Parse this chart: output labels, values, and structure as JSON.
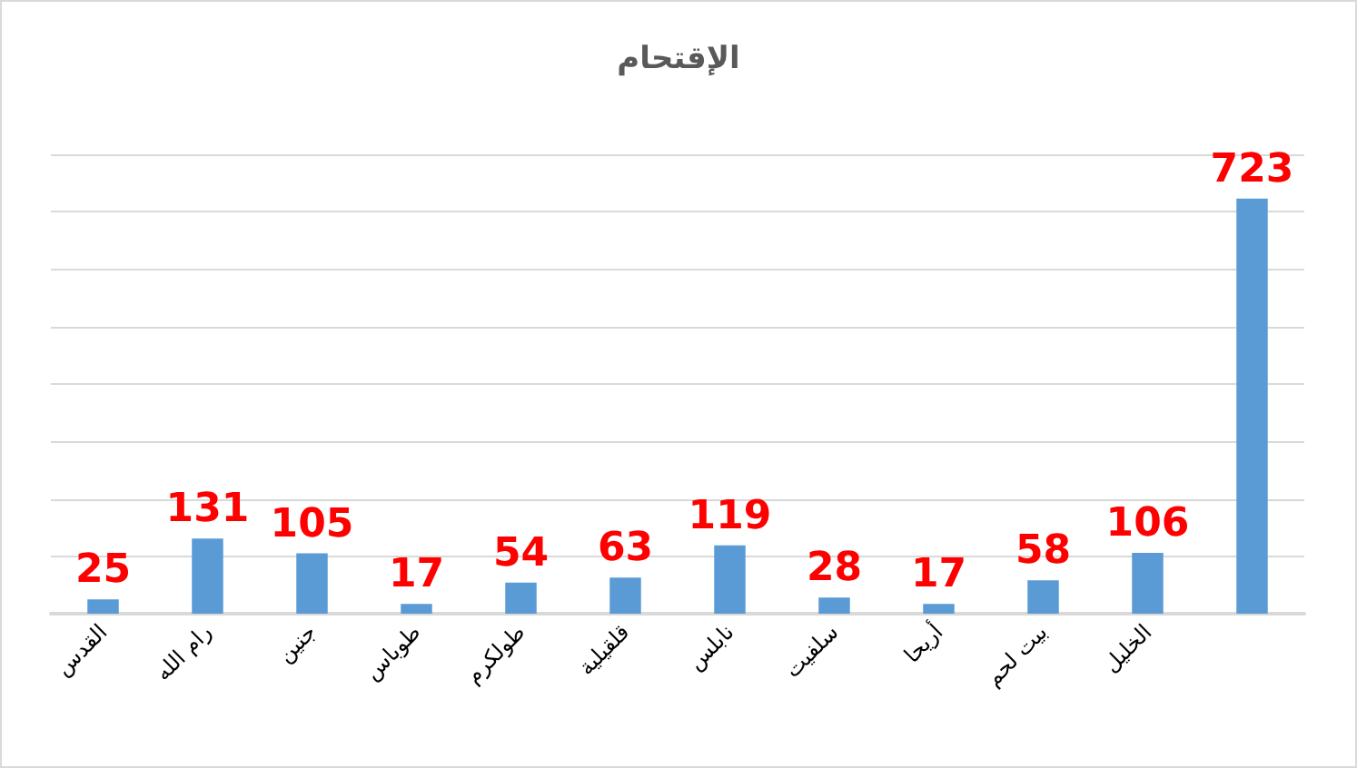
{
  "chart_data": {
    "type": "bar",
    "title": "الإقتحام",
    "categories": [
      "القدس",
      "رام الله",
      "جنين",
      "طوباس",
      "طولكرم",
      "قلقيلية",
      "نابلس",
      "سلفيت",
      "أريحا",
      "بيت لحم",
      "الخليل",
      null
    ],
    "values": [
      25,
      131,
      105,
      17,
      54,
      63,
      119,
      28,
      17,
      58,
      106,
      723
    ],
    "color": "#5b9bd5",
    "ylim": [
      0,
      800
    ],
    "yticks": [
      {
        "value": 0,
        "label": null
      },
      {
        "value": 100,
        "label": null
      },
      {
        "value": 200,
        "label": null
      },
      {
        "value": 300,
        "label": null
      },
      {
        "value": 400,
        "label": null
      },
      {
        "value": 500,
        "label": null
      },
      {
        "value": 600,
        "label": null
      },
      {
        "value": 700,
        "label": null
      },
      {
        "value": 800,
        "label": null
      }
    ],
    "grid": "y",
    "tick_labels": "x",
    "data_labels": true
  }
}
